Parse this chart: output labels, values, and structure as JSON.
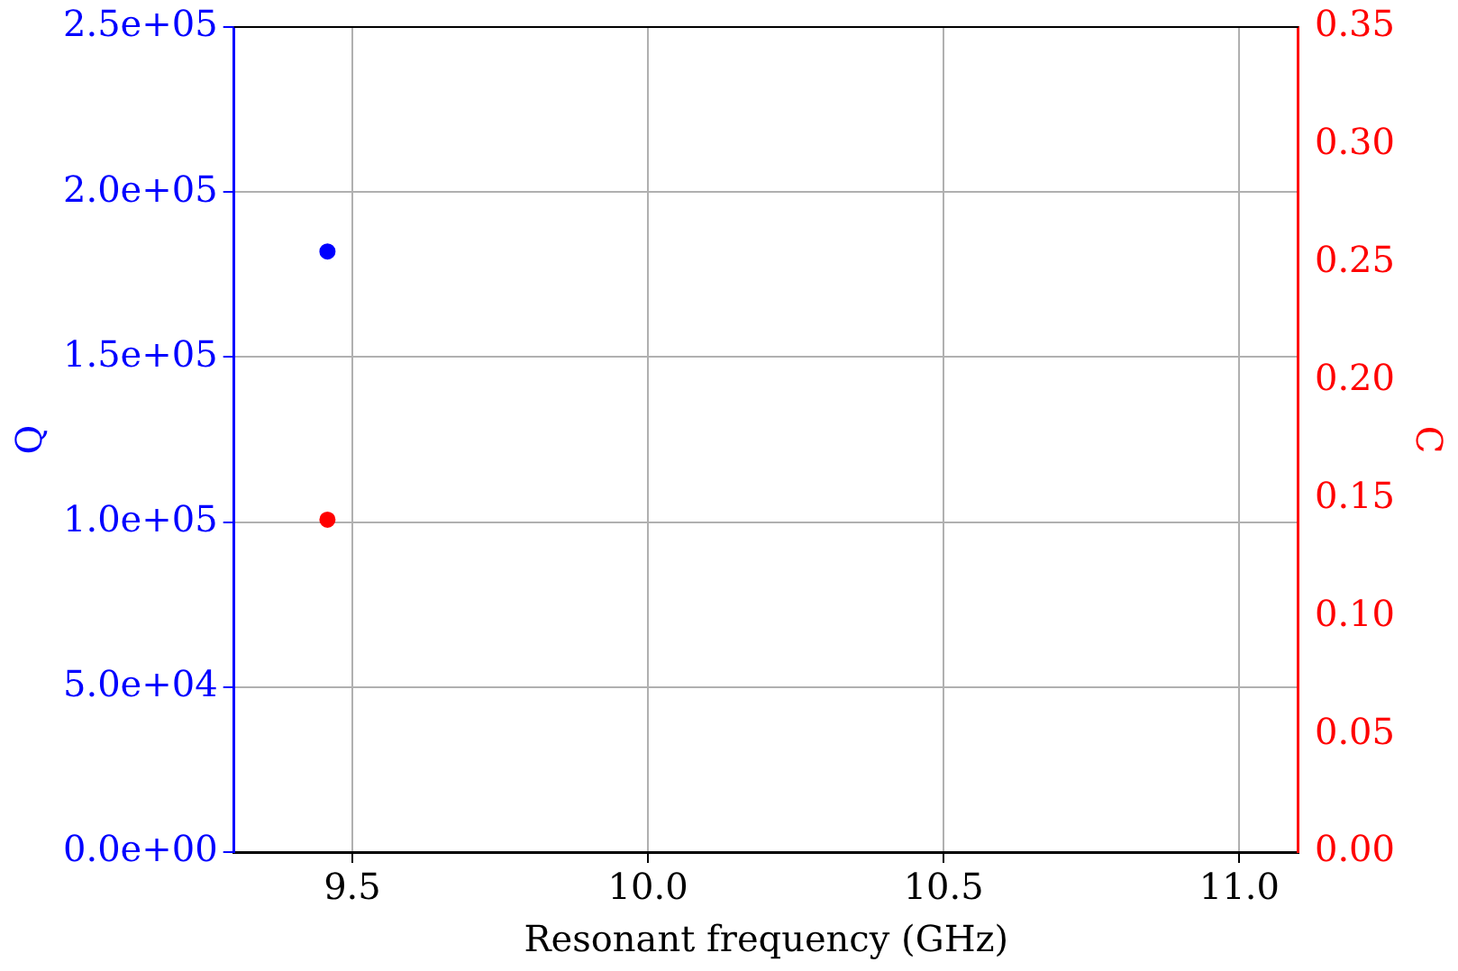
{
  "chart_data": {
    "type": "scatter",
    "xlabel": "Resonant frequency (GHz)",
    "ylabel": "Q",
    "y2label": "C",
    "x": [
      9.458
    ],
    "series": [
      {
        "color": "#0000ff",
        "values": [
          182000
        ]
      },
      {
        "color": "#ff0000",
        "values": [
          0.141
        ],
        "axis": "y2"
      }
    ],
    "xlim": [
      9.3,
      11.1
    ],
    "xticks": [
      {
        "value": 9.5,
        "label": "9.5"
      },
      {
        "value": 10.0,
        "label": "10.0"
      },
      {
        "value": 10.5,
        "label": "10.5"
      },
      {
        "value": 11.0,
        "label": "11.0"
      }
    ],
    "ylim": [
      0,
      250000
    ],
    "yticks": [
      {
        "value": 0,
        "label": "0.0e+00"
      },
      {
        "value": 50000,
        "label": "5.0e+04"
      },
      {
        "value": 100000,
        "label": "1.0e+05"
      },
      {
        "value": 150000,
        "label": "1.5e+05"
      },
      {
        "value": 200000,
        "label": "2.0e+05"
      },
      {
        "value": 250000,
        "label": "2.5e+05"
      }
    ],
    "y2lim": [
      0,
      0.35
    ],
    "y2ticks": [
      {
        "value": 0,
        "label": "0.00"
      },
      {
        "value": 0.05,
        "label": "0.05"
      },
      {
        "value": 0.1,
        "label": "0.10"
      },
      {
        "value": 0.15,
        "label": "0.15"
      },
      {
        "value": 0.2,
        "label": "0.20"
      },
      {
        "value": 0.25,
        "label": "0.25"
      },
      {
        "value": 0.3,
        "label": "0.30"
      },
      {
        "value": 0.35,
        "label": "0.35"
      }
    ],
    "grid": true,
    "marker": "circle"
  }
}
